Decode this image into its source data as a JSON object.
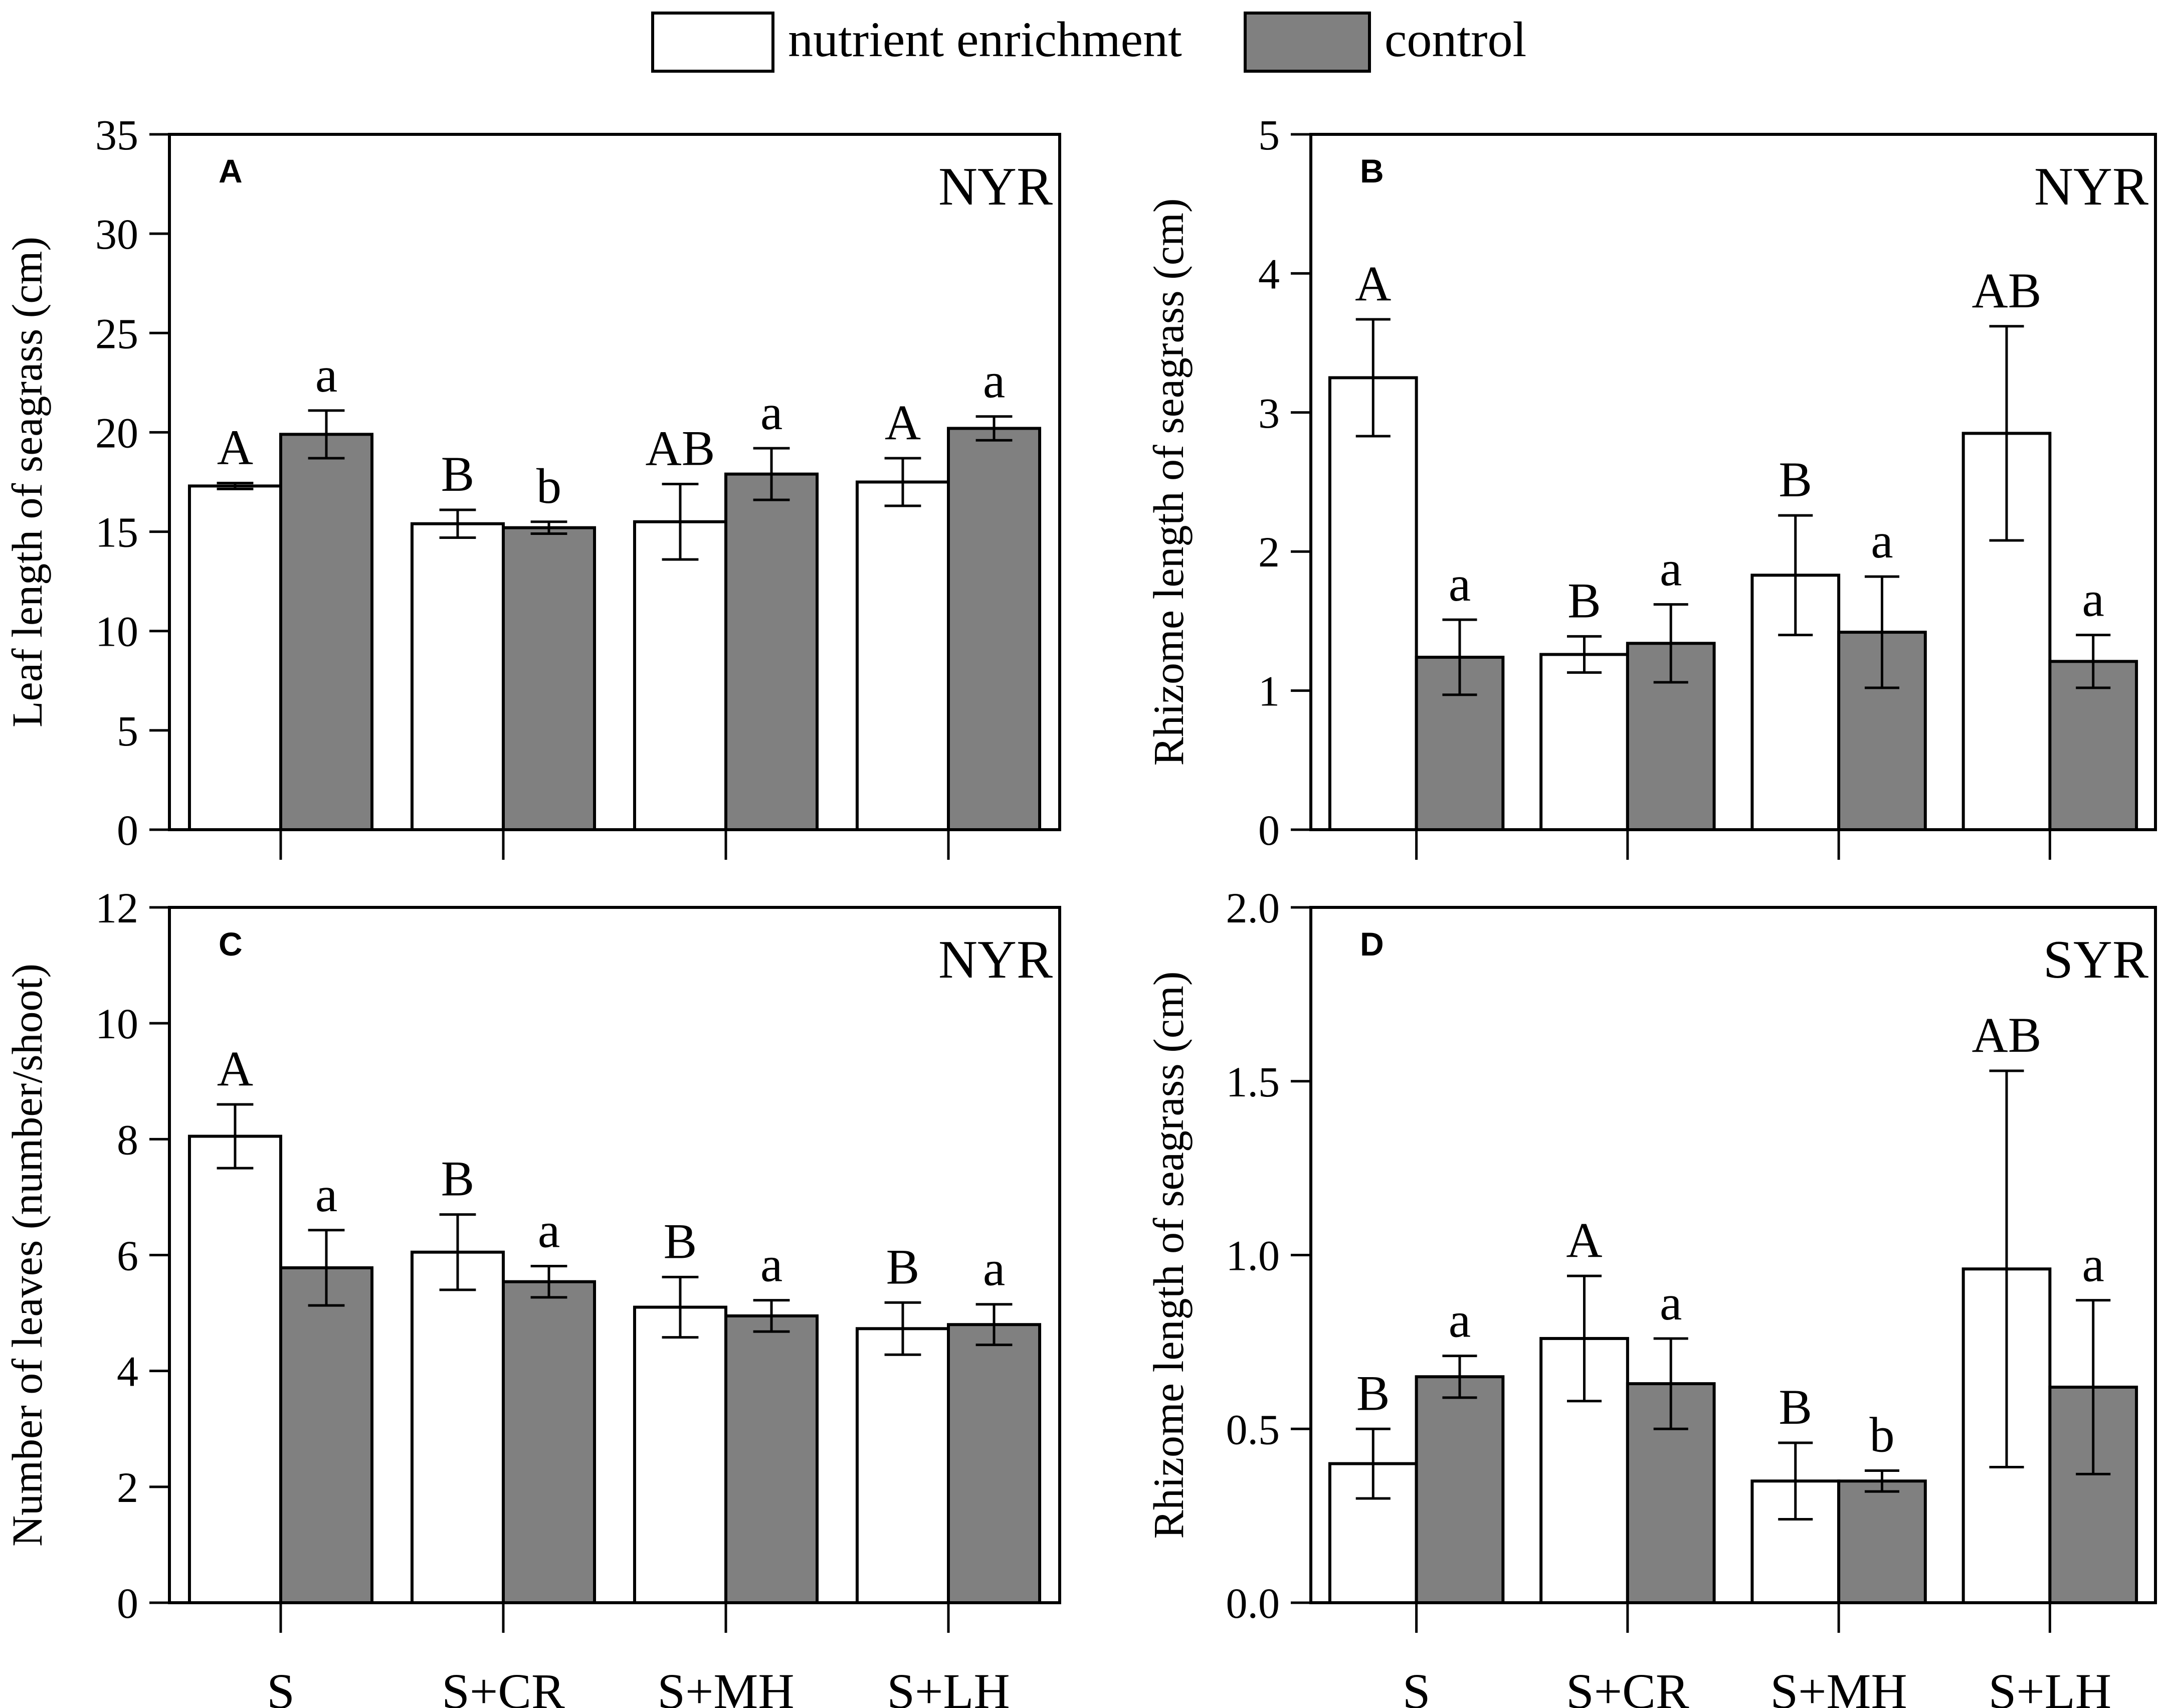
{
  "legend": {
    "items": [
      {
        "label": "nutrient enrichment",
        "color": "#ffffff"
      },
      {
        "label": "control",
        "color": "#808080"
      }
    ]
  },
  "chart_data": [
    {
      "panel": "A",
      "type": "bar",
      "site": "NYR",
      "ylabel": "Leaf length of seagrass (cm)",
      "categories": [
        "S",
        "S+CR",
        "S+MH",
        "S+LH"
      ],
      "show_category_labels": false,
      "ylim": [
        0,
        35
      ],
      "yticks": [
        "0",
        "5",
        "10",
        "15",
        "20",
        "25",
        "30",
        "35"
      ],
      "series": [
        {
          "name": "nutrient enrichment",
          "values": [
            17.3,
            15.4,
            15.5,
            17.5
          ],
          "errors": [
            0.15,
            0.7,
            1.9,
            1.2
          ],
          "letters": [
            "A",
            "B",
            "AB",
            "A"
          ]
        },
        {
          "name": "control",
          "values": [
            19.9,
            15.2,
            17.9,
            20.2
          ],
          "errors": [
            1.2,
            0.3,
            1.3,
            0.6
          ],
          "letters": [
            "a",
            "b",
            "a",
            "a"
          ]
        }
      ]
    },
    {
      "panel": "B",
      "type": "bar",
      "site": "NYR",
      "ylabel": "Rhizome length of seagrass (cm)",
      "categories": [
        "S",
        "S+CR",
        "S+MH",
        "S+LH"
      ],
      "show_category_labels": false,
      "ylim": [
        0,
        5
      ],
      "yticks": [
        "0",
        "1",
        "2",
        "3",
        "4",
        "5"
      ],
      "series": [
        {
          "name": "nutrient enrichment",
          "values": [
            3.25,
            1.26,
            1.83,
            2.85
          ],
          "errors": [
            0.42,
            0.13,
            0.43,
            0.77
          ],
          "letters": [
            "A",
            "B",
            "B",
            "AB"
          ]
        },
        {
          "name": "control",
          "values": [
            1.24,
            1.34,
            1.42,
            1.21
          ],
          "errors": [
            0.27,
            0.28,
            0.4,
            0.19
          ],
          "letters": [
            "a",
            "a",
            "a",
            "a"
          ]
        }
      ]
    },
    {
      "panel": "C",
      "type": "bar",
      "site": "NYR",
      "ylabel": "Number of leaves (number/shoot)",
      "categories": [
        "S",
        "S+CR",
        "S+MH",
        "S+LH"
      ],
      "show_category_labels": true,
      "ylim": [
        0,
        12
      ],
      "yticks": [
        "0",
        "2",
        "4",
        "6",
        "8",
        "10",
        "12"
      ],
      "series": [
        {
          "name": "nutrient enrichment",
          "values": [
            8.05,
            6.05,
            5.1,
            4.73
          ],
          "errors": [
            0.55,
            0.65,
            0.52,
            0.45
          ],
          "letters": [
            "A",
            "B",
            "B",
            "B"
          ]
        },
        {
          "name": "control",
          "values": [
            5.78,
            5.54,
            4.95,
            4.8
          ],
          "errors": [
            0.65,
            0.27,
            0.27,
            0.35
          ],
          "letters": [
            "a",
            "a",
            "a",
            "a"
          ]
        }
      ]
    },
    {
      "panel": "D",
      "type": "bar",
      "site": "SYR",
      "ylabel": "Rhizome length of seagrass (cm)",
      "categories": [
        "S",
        "S+CR",
        "S+MH",
        "S+LH"
      ],
      "show_category_labels": true,
      "ylim": [
        0,
        2.0
      ],
      "yticks": [
        "0.0",
        "0.5",
        "1.0",
        "1.5",
        "2.0"
      ],
      "series": [
        {
          "name": "nutrient enrichment",
          "values": [
            0.4,
            0.76,
            0.35,
            0.96
          ],
          "errors": [
            0.1,
            0.18,
            0.11,
            0.57
          ],
          "letters": [
            "B",
            "A",
            "B",
            "AB"
          ]
        },
        {
          "name": "control",
          "values": [
            0.65,
            0.63,
            0.35,
            0.62
          ],
          "errors": [
            0.06,
            0.13,
            0.03,
            0.25
          ],
          "letters": [
            "a",
            "a",
            "b",
            "a"
          ]
        }
      ]
    }
  ]
}
